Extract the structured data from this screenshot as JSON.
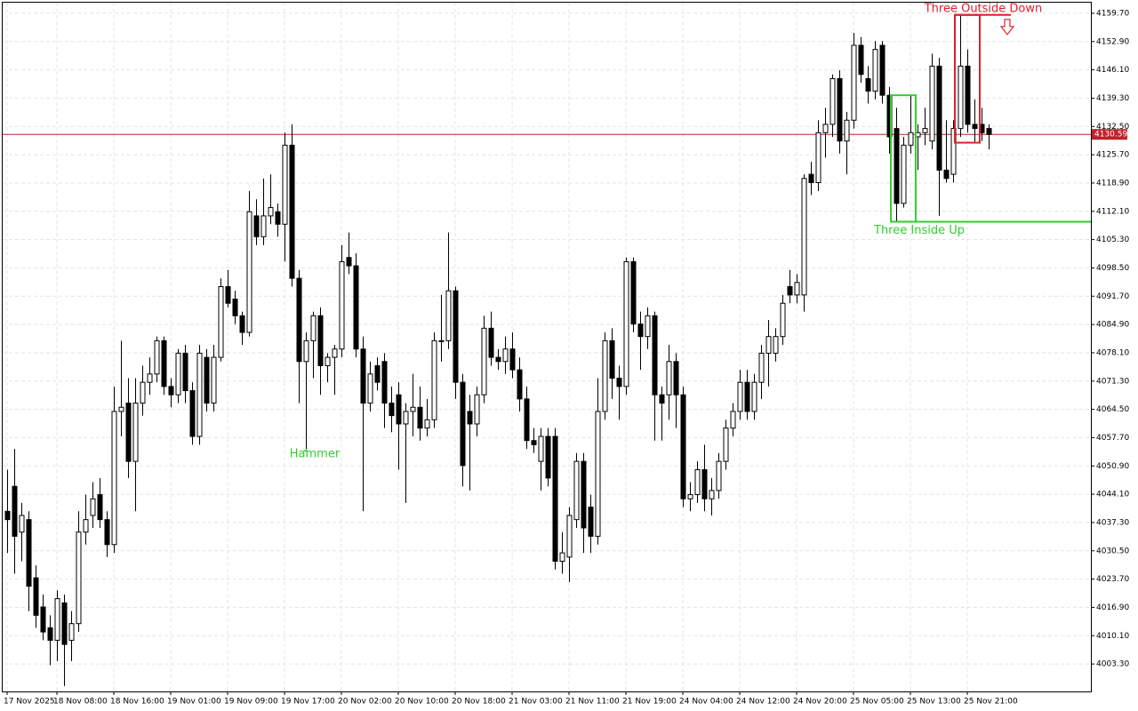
{
  "chart_data": {
    "type": "candlestick",
    "up_color": "#ffffff",
    "down_color": "#000000",
    "grid": true,
    "candles": [
      [
        4040,
        4050,
        4030,
        4038
      ],
      [
        4046,
        4055,
        4025,
        4034
      ],
      [
        4035,
        4042,
        4028,
        4039
      ],
      [
        4038,
        4040,
        4016,
        4022
      ],
      [
        4024,
        4027,
        4012,
        4015
      ],
      [
        4017,
        4020,
        4009,
        4011
      ],
      [
        4012,
        4015,
        4003,
        4009
      ],
      [
        4009,
        4021,
        4004,
        4019
      ],
      [
        4018,
        4020,
        3998,
        4008
      ],
      [
        4009,
        4016,
        4004,
        4013
      ],
      [
        4013,
        4040,
        4011,
        4035
      ],
      [
        4035,
        4044,
        4032,
        4038
      ],
      [
        4039,
        4047,
        4036,
        4043
      ],
      [
        4044,
        4048,
        4036,
        4038
      ],
      [
        4038,
        4040,
        4029,
        4032
      ],
      [
        4032,
        4070,
        4030,
        4064
      ],
      [
        4064,
        4081,
        4058,
        4065
      ],
      [
        4066,
        4072,
        4048,
        4052
      ],
      [
        4052,
        4072,
        4040,
        4066
      ],
      [
        4066,
        4075,
        4063,
        4071
      ],
      [
        4071,
        4077,
        4068,
        4073
      ],
      [
        4073,
        4082,
        4071,
        4081
      ],
      [
        4081,
        4082,
        4068,
        4070
      ],
      [
        4070,
        4072,
        4065,
        4068
      ],
      [
        4068,
        4079,
        4066,
        4078
      ],
      [
        4078,
        4080,
        4066,
        4069
      ],
      [
        4069,
        4071,
        4056,
        4058
      ],
      [
        4058,
        4080,
        4056,
        4078
      ],
      [
        4077,
        4079,
        4064,
        4066
      ],
      [
        4066,
        4080,
        4064,
        4077
      ],
      [
        4077,
        4096,
        4076,
        4094
      ],
      [
        4094,
        4098,
        4089,
        4090
      ],
      [
        4091,
        4093,
        4085,
        4087
      ],
      [
        4087,
        4088,
        4080,
        4083
      ],
      [
        4083,
        4117,
        4082,
        4112
      ],
      [
        4111,
        4115,
        4104,
        4106
      ],
      [
        4106,
        4120,
        4104,
        4111
      ],
      [
        4111,
        4121,
        4109,
        4113
      ],
      [
        4112,
        4114,
        4106,
        4109
      ],
      [
        4109,
        4131,
        4100,
        4128
      ],
      [
        4128,
        4133,
        4094,
        4096
      ],
      [
        4096,
        4098,
        4066,
        4076
      ],
      [
        4076,
        4083,
        4055,
        4081
      ],
      [
        4081,
        4088,
        4072,
        4087
      ],
      [
        4087,
        4089,
        4068,
        4075
      ],
      [
        4075,
        4078,
        4071,
        4077
      ],
      [
        4077,
        4080,
        4068,
        4079
      ],
      [
        4079,
        4104,
        4077,
        4100
      ],
      [
        4101,
        4107,
        4097,
        4099
      ],
      [
        4099,
        4102,
        4077,
        4079
      ],
      [
        4079,
        4082,
        4040,
        4066
      ],
      [
        4066,
        4076,
        4064,
        4073
      ],
      [
        4075,
        4077,
        4069,
        4071
      ],
      [
        4076,
        4078,
        4060,
        4066
      ],
      [
        4066,
        4070,
        4059,
        4063
      ],
      [
        4068,
        4071,
        4050,
        4061
      ],
      [
        4061,
        4066,
        4042,
        4064
      ],
      [
        4064,
        4073,
        4058,
        4065
      ],
      [
        4065,
        4070,
        4057,
        4060
      ],
      [
        4060,
        4067,
        4058,
        4062
      ],
      [
        4062,
        4083,
        4060,
        4081
      ],
      [
        4081,
        4092,
        4076,
        4081
      ],
      [
        4081,
        4107,
        4079,
        4093
      ],
      [
        4093,
        4094,
        4067,
        4071
      ],
      [
        4071,
        4073,
        4046,
        4051
      ],
      [
        4064,
        4068,
        4045,
        4061
      ],
      [
        4061,
        4070,
        4058,
        4068
      ],
      [
        4068,
        4087,
        4066,
        4084
      ],
      [
        4084,
        4088,
        4075,
        4077
      ],
      [
        4077,
        4079,
        4074,
        4076
      ],
      [
        4076,
        4082,
        4073,
        4079
      ],
      [
        4079,
        4083,
        4072,
        4074
      ],
      [
        4074,
        4077,
        4064,
        4067
      ],
      [
        4067,
        4070,
        4055,
        4057
      ],
      [
        4057,
        4060,
        4054,
        4056
      ],
      [
        4052,
        4060,
        4045,
        4058
      ],
      [
        4058,
        4060,
        4046,
        4048
      ],
      [
        4058,
        4060,
        4026,
        4028
      ],
      [
        4028,
        4035,
        4025,
        4030
      ],
      [
        4029,
        4041,
        4023,
        4039
      ],
      [
        4038,
        4054,
        4036,
        4052
      ],
      [
        4052,
        4054,
        4030,
        4036
      ],
      [
        4041,
        4044,
        4030,
        4034
      ],
      [
        4034,
        4072,
        4032,
        4064
      ],
      [
        4064,
        4083,
        4062,
        4081
      ],
      [
        4081,
        4084,
        4067,
        4072
      ],
      [
        4072,
        4075,
        4062,
        4070
      ],
      [
        4070,
        4101,
        4068,
        4100
      ],
      [
        4100,
        4101,
        4083,
        4085
      ],
      [
        4085,
        4088,
        4074,
        4082
      ],
      [
        4082,
        4089,
        4079,
        4087
      ],
      [
        4087,
        4088,
        4057,
        4068
      ],
      [
        4068,
        4070,
        4057,
        4066
      ],
      [
        4068,
        4080,
        4062,
        4076
      ],
      [
        4076,
        4078,
        4060,
        4068
      ],
      [
        4068,
        4070,
        4041,
        4043
      ],
      [
        4043,
        4047,
        4040,
        4044
      ],
      [
        4044,
        4052,
        4042,
        4050
      ],
      [
        4050,
        4056,
        4040,
        4043
      ],
      [
        4043,
        4048,
        4039,
        4045
      ],
      [
        4045,
        4054,
        4043,
        4052
      ],
      [
        4052,
        4062,
        4050,
        4060
      ],
      [
        4060,
        4066,
        4058,
        4064
      ],
      [
        4064,
        4074,
        4062,
        4071
      ],
      [
        4071,
        4074,
        4062,
        4064
      ],
      [
        4064,
        4073,
        4062,
        4071
      ],
      [
        4071,
        4080,
        4067,
        4078
      ],
      [
        4078,
        4086,
        4070,
        4082
      ],
      [
        4078,
        4084,
        4076,
        4082
      ],
      [
        4082,
        4092,
        4080,
        4090
      ],
      [
        4094,
        4098,
        4090,
        4092
      ],
      [
        4092,
        4097,
        4090,
        4095
      ],
      [
        4092,
        4121,
        4088,
        4120
      ],
      [
        4121,
        4124,
        4116,
        4119
      ],
      [
        4119,
        4134,
        4117,
        4131
      ],
      [
        4131,
        4137,
        4125,
        4133
      ],
      [
        4133,
        4145,
        4130,
        4144
      ],
      [
        4144,
        4146,
        4126,
        4129
      ],
      [
        4129,
        4136,
        4121,
        4134
      ],
      [
        4134,
        4155,
        4132,
        4152
      ],
      [
        4152,
        4154,
        4143,
        4145
      ],
      [
        4144,
        4147,
        4138,
        4141
      ],
      [
        4141,
        4153,
        4139,
        4151
      ],
      [
        4152,
        4153,
        4138,
        4140
      ],
      [
        4140,
        4142,
        4126,
        4130
      ],
      [
        4132,
        4137,
        4109.6,
        4114
      ],
      [
        4114,
        4130,
        4113,
        4128
      ],
      [
        4128,
        4140,
        4126,
        4131
      ],
      [
        4130,
        4133,
        4122,
        4131
      ],
      [
        4131,
        4137,
        4128,
        4132
      ],
      [
        4129,
        4150,
        4127,
        4147
      ],
      [
        4147,
        4149,
        4111,
        4122
      ],
      [
        4122,
        4134,
        4119,
        4120
      ],
      [
        4121,
        4134,
        4119,
        4132
      ],
      [
        4132,
        4159.3,
        4130,
        4147
      ],
      [
        4147,
        4151,
        4131,
        4133
      ],
      [
        4133,
        4139,
        4128.6,
        4132
      ],
      [
        4133,
        4137,
        4129,
        4131
      ],
      [
        4132,
        4133,
        4127,
        4130.59
      ]
    ],
    "last_price": 4130.59,
    "last_price_color": "#c0202a",
    "ylim": [
      3996.7,
      4162.25
    ],
    "yticks": [
      {
        "value": 4003.3,
        "label": "4003.30"
      },
      {
        "value": 4010.1,
        "label": "4010.10"
      },
      {
        "value": 4016.9,
        "label": "4016.90"
      },
      {
        "value": 4023.7,
        "label": "4023.70"
      },
      {
        "value": 4030.5,
        "label": "4030.50"
      },
      {
        "value": 4037.3,
        "label": "4037.30"
      },
      {
        "value": 4044.1,
        "label": "4044.10"
      },
      {
        "value": 4050.9,
        "label": "4050.90"
      },
      {
        "value": 4057.7,
        "label": "4057.70"
      },
      {
        "value": 4064.5,
        "label": "4064.50"
      },
      {
        "value": 4071.3,
        "label": "4071.30"
      },
      {
        "value": 4078.1,
        "label": "4078.10"
      },
      {
        "value": 4084.9,
        "label": "4084.90"
      },
      {
        "value": 4091.7,
        "label": "4091.70"
      },
      {
        "value": 4098.5,
        "label": "4098.50"
      },
      {
        "value": 4105.3,
        "label": "4105.30"
      },
      {
        "value": 4112.1,
        "label": "4112.10"
      },
      {
        "value": 4118.9,
        "label": "4118.90"
      },
      {
        "value": 4125.7,
        "label": "4125.70"
      },
      {
        "value": 4132.5,
        "label": "4132.50"
      },
      {
        "value": 4139.3,
        "label": "4139.30"
      },
      {
        "value": 4146.1,
        "label": "4146.10"
      },
      {
        "value": 4152.9,
        "label": "4152.90"
      },
      {
        "value": 4159.7,
        "label": "4159.70"
      }
    ],
    "xticks": [
      {
        "value": 0,
        "label": "17 Nov 2025"
      },
      {
        "value": 7,
        "label": "18 Nov 08:00"
      },
      {
        "value": 15,
        "label": "18 Nov 16:00"
      },
      {
        "value": 23,
        "label": "19 Nov 01:00"
      },
      {
        "value": 31,
        "label": "19 Nov 09:00"
      },
      {
        "value": 39,
        "label": "19 Nov 17:00"
      },
      {
        "value": 47,
        "label": "20 Nov 02:00"
      },
      {
        "value": 55,
        "label": "20 Nov 10:00"
      },
      {
        "value": 63,
        "label": "20 Nov 18:00"
      },
      {
        "value": 71,
        "label": "21 Nov 03:00"
      },
      {
        "value": 79,
        "label": "21 Nov 11:00"
      },
      {
        "value": 87,
        "label": "21 Nov 19:00"
      },
      {
        "value": 95,
        "label": "24 Nov 04:00"
      },
      {
        "value": 103,
        "label": "24 Nov 12:00"
      },
      {
        "value": 111,
        "label": "24 Nov 20:00"
      },
      {
        "value": 119,
        "label": "25 Nov 05:00"
      },
      {
        "value": 127,
        "label": "25 Nov 13:00"
      },
      {
        "value": 135,
        "label": "25 Nov 21:00"
      }
    ],
    "patterns": [
      {
        "name": "Hammer",
        "color": "#32cd32",
        "from": 42,
        "to": 42
      },
      {
        "name": "Three Inside Up",
        "color": "#32cd32",
        "from": 125,
        "to": 127
      },
      {
        "name": "Three Outside Down",
        "color": "#e0202a",
        "from": 134,
        "to": 136
      }
    ]
  }
}
